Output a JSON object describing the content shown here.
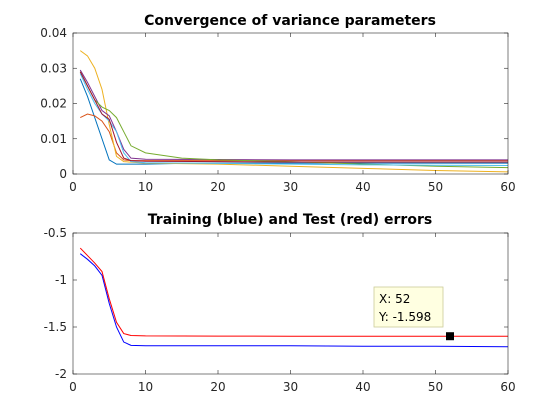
{
  "chart_data": [
    {
      "type": "line",
      "title": "Convergence of variance parameters",
      "xlabel": "",
      "ylabel": "",
      "xlim": [
        0,
        60
      ],
      "ylim": [
        0,
        0.04
      ],
      "xticks": [
        0,
        10,
        20,
        30,
        40,
        50,
        60
      ],
      "xtick_labels": [
        "0",
        "10",
        "20",
        "30",
        "40",
        "50",
        "60"
      ],
      "yticks": [
        0,
        0.01,
        0.02,
        0.03,
        0.04
      ],
      "ytick_labels": [
        "0",
        "0.01",
        "0.02",
        "0.03",
        "0.04"
      ],
      "grid": false,
      "series": [
        {
          "color": "#0072BD",
          "points": [
            [
              1,
              0.027
            ],
            [
              2,
              0.022
            ],
            [
              3,
              0.016
            ],
            [
              4,
              0.01
            ],
            [
              5,
              0.004
            ],
            [
              6,
              0.0028
            ],
            [
              8,
              0.0028
            ],
            [
              10,
              0.0028
            ],
            [
              15,
              0.003
            ],
            [
              20,
              0.0031
            ],
            [
              30,
              0.0031
            ],
            [
              40,
              0.0031
            ],
            [
              50,
              0.0031
            ],
            [
              60,
              0.0031
            ]
          ]
        },
        {
          "color": "#D95319",
          "points": [
            [
              1,
              0.016
            ],
            [
              2,
              0.017
            ],
            [
              3,
              0.0165
            ],
            [
              4,
              0.015
            ],
            [
              5,
              0.012
            ],
            [
              6,
              0.006
            ],
            [
              7,
              0.004
            ],
            [
              8,
              0.0038
            ],
            [
              10,
              0.0038
            ],
            [
              20,
              0.0038
            ],
            [
              30,
              0.0038
            ],
            [
              40,
              0.0038
            ],
            [
              50,
              0.0038
            ],
            [
              60,
              0.0038
            ]
          ]
        },
        {
          "color": "#EDB120",
          "points": [
            [
              1,
              0.035
            ],
            [
              2,
              0.0335
            ],
            [
              3,
              0.03
            ],
            [
              4,
              0.024
            ],
            [
              5,
              0.014
            ],
            [
              6,
              0.005
            ],
            [
              7,
              0.0035
            ],
            [
              10,
              0.0031
            ],
            [
              20,
              0.0028
            ],
            [
              30,
              0.0022
            ],
            [
              40,
              0.0016
            ],
            [
              50,
              0.001
            ],
            [
              60,
              0.0006
            ]
          ]
        },
        {
          "color": "#7E2F8E",
          "points": [
            [
              1,
              0.0295
            ],
            [
              2,
              0.026
            ],
            [
              3,
              0.022
            ],
            [
              4,
              0.018
            ],
            [
              5,
              0.0165
            ],
            [
              6,
              0.012
            ],
            [
              7,
              0.007
            ],
            [
              8,
              0.0045
            ],
            [
              10,
              0.0042
            ],
            [
              20,
              0.0041
            ],
            [
              30,
              0.004
            ],
            [
              40,
              0.004
            ],
            [
              50,
              0.004
            ],
            [
              60,
              0.004
            ]
          ]
        },
        {
          "color": "#77AC30",
          "points": [
            [
              1,
              0.029
            ],
            [
              2,
              0.025
            ],
            [
              3,
              0.021
            ],
            [
              4,
              0.019
            ],
            [
              5,
              0.018
            ],
            [
              6,
              0.016
            ],
            [
              7,
              0.012
            ],
            [
              8,
              0.008
            ],
            [
              10,
              0.006
            ],
            [
              15,
              0.0045
            ],
            [
              20,
              0.004
            ],
            [
              30,
              0.0035
            ],
            [
              40,
              0.0028
            ],
            [
              50,
              0.0022
            ],
            [
              60,
              0.0018
            ]
          ]
        },
        {
          "color": "#4DBEEE",
          "points": [
            [
              1,
              0.0285
            ],
            [
              2,
              0.024
            ],
            [
              3,
              0.02
            ],
            [
              4,
              0.017
            ],
            [
              5,
              0.015
            ],
            [
              6,
              0.012
            ],
            [
              7,
              0.006
            ],
            [
              8,
              0.0035
            ],
            [
              10,
              0.0032
            ],
            [
              20,
              0.003
            ],
            [
              30,
              0.0028
            ],
            [
              40,
              0.0026
            ],
            [
              50,
              0.0025
            ],
            [
              60,
              0.0024
            ]
          ]
        },
        {
          "color": "#A2142F",
          "points": [
            [
              1,
              0.029
            ],
            [
              2,
              0.025
            ],
            [
              3,
              0.021
            ],
            [
              4,
              0.017
            ],
            [
              5,
              0.0155
            ],
            [
              6,
              0.009
            ],
            [
              7,
              0.0045
            ],
            [
              8,
              0.0038
            ],
            [
              10,
              0.0036
            ],
            [
              20,
              0.0035
            ],
            [
              30,
              0.0034
            ],
            [
              40,
              0.0034
            ],
            [
              50,
              0.0034
            ],
            [
              60,
              0.0034
            ]
          ]
        }
      ]
    },
    {
      "type": "line",
      "title": "Training (blue) and Test (red) errors",
      "xlabel": "",
      "ylabel": "",
      "xlim": [
        0,
        60
      ],
      "ylim": [
        -2,
        -0.5
      ],
      "xticks": [
        0,
        10,
        20,
        30,
        40,
        50,
        60
      ],
      "xtick_labels": [
        "0",
        "10",
        "20",
        "30",
        "40",
        "50",
        "60"
      ],
      "yticks": [
        -2,
        -1.5,
        -1,
        -0.5
      ],
      "ytick_labels": [
        "-2",
        "-1.5",
        "-1",
        "-0.5"
      ],
      "grid": false,
      "series": [
        {
          "color": "#0000FF",
          "points": [
            [
              1,
              -0.72
            ],
            [
              2,
              -0.78
            ],
            [
              3,
              -0.85
            ],
            [
              4,
              -0.95
            ],
            [
              5,
              -1.25
            ],
            [
              6,
              -1.5
            ],
            [
              7,
              -1.66
            ],
            [
              8,
              -1.695
            ],
            [
              10,
              -1.7
            ],
            [
              20,
              -1.7
            ],
            [
              30,
              -1.7
            ],
            [
              40,
              -1.705
            ],
            [
              50,
              -1.705
            ],
            [
              60,
              -1.71
            ]
          ]
        },
        {
          "color": "#FF0000",
          "points": [
            [
              1,
              -0.66
            ],
            [
              2,
              -0.74
            ],
            [
              3,
              -0.82
            ],
            [
              4,
              -0.91
            ],
            [
              5,
              -1.2
            ],
            [
              6,
              -1.45
            ],
            [
              7,
              -1.57
            ],
            [
              8,
              -1.59
            ],
            [
              10,
              -1.595
            ],
            [
              20,
              -1.597
            ],
            [
              30,
              -1.598
            ],
            [
              40,
              -1.598
            ],
            [
              50,
              -1.598
            ],
            [
              52,
              -1.598
            ],
            [
              60,
              -1.598
            ]
          ]
        }
      ],
      "datatip": {
        "x_label": "X: 52",
        "y_label": "Y: -1.598",
        "x": 52,
        "y": -1.598
      }
    }
  ]
}
